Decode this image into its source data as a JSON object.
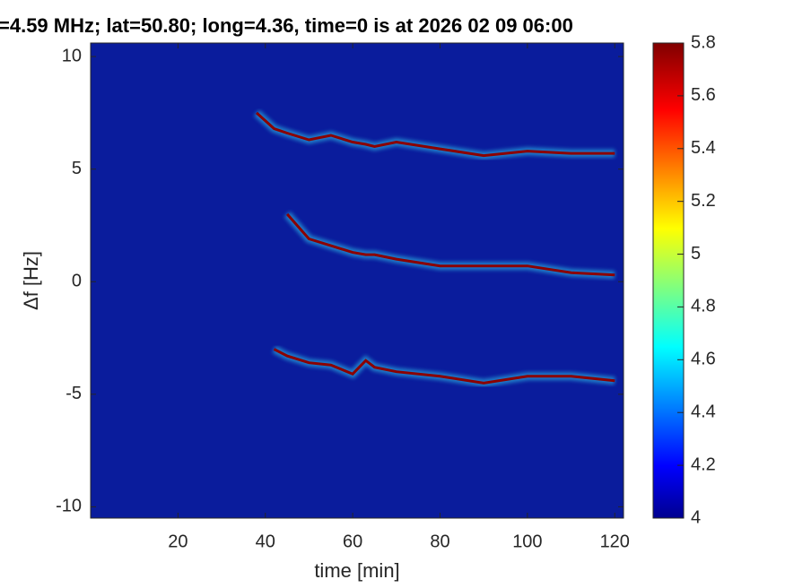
{
  "chart_data": {
    "type": "spectrogram",
    "title": "=4.59 MHz;  lat=50.80; long=4.36, time=0 is at 2026 02 09 06:00",
    "x_label": "time [min]",
    "y_label": "Δf [Hz]",
    "x": [
      38,
      42,
      45,
      50,
      55,
      60,
      63,
      65,
      70,
      80,
      90,
      100,
      110,
      120
    ],
    "series": [
      {
        "color": "#8b0000",
        "values": [
          7.5,
          6.8,
          6.6,
          6.3,
          6.5,
          6.2,
          6.1,
          6.0,
          6.2,
          5.9,
          5.6,
          5.8,
          5.7,
          5.7
        ]
      },
      {
        "color": "#8b0000",
        "values": [
          null,
          null,
          3.0,
          1.9,
          1.6,
          1.3,
          1.2,
          1.2,
          1.0,
          0.7,
          0.7,
          0.7,
          0.4,
          0.3
        ]
      },
      {
        "color": "#8b0000",
        "values": [
          null,
          -3.0,
          -3.3,
          -3.6,
          -3.7,
          -4.1,
          -3.5,
          -3.8,
          -4.0,
          -4.2,
          -4.5,
          -4.2,
          -4.2,
          -4.4
        ]
      }
    ],
    "xlim": [
      0,
      122
    ],
    "xticks": [
      20,
      40,
      60,
      80,
      100,
      120
    ],
    "ylim": [
      -10.5,
      10.6
    ],
    "yticks": [
      -10,
      -5,
      0,
      5,
      10
    ],
    "clim": [
      4,
      5.8
    ],
    "cticks": [
      4,
      4.2,
      4.4,
      4.6,
      4.8,
      5,
      5.2,
      5.4,
      5.6,
      5.8
    ],
    "colormap": "jet",
    "background": "#0a1c9c"
  }
}
